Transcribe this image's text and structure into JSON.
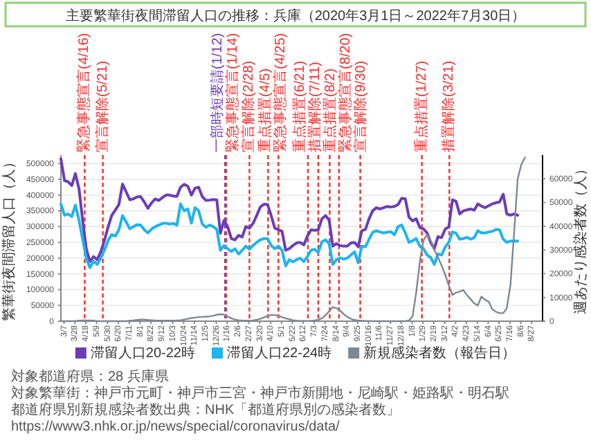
{
  "chart_data": {
    "type": "line",
    "title": "主要繁華街夜間滞留人口の推移：兵庫（2020年3月1日～2022年7月30日）",
    "ylabel": "繁華街夜間滞留人口（人）",
    "y2label": "週あたり感染者数（人）",
    "x": [
      "2020-03-01",
      "2020-03-08",
      "2020-03-15",
      "2020-03-22",
      "2020-03-29",
      "2020-04-05",
      "2020-04-12",
      "2020-04-19",
      "2020-04-26",
      "2020-05-03",
      "2020-05-10",
      "2020-05-17",
      "2020-05-24",
      "2020-05-31",
      "2020-06-07",
      "2020-06-14",
      "2020-06-21",
      "2020-06-28",
      "2020-07-05",
      "2020-07-12",
      "2020-07-19",
      "2020-07-26",
      "2020-08-02",
      "2020-08-09",
      "2020-08-16",
      "2020-08-23",
      "2020-08-30",
      "2020-09-06",
      "2020-09-13",
      "2020-09-20",
      "2020-09-27",
      "2020-10-04",
      "2020-10-11",
      "2020-10-18",
      "2020-10-25",
      "2020-11-01",
      "2020-11-08",
      "2020-11-15",
      "2020-11-22",
      "2020-11-29",
      "2020-12-06",
      "2020-12-13",
      "2020-12-20",
      "2020-12-27",
      "2021-01-03",
      "2021-01-10",
      "2021-01-17",
      "2021-01-24",
      "2021-01-31",
      "2021-02-07",
      "2021-02-14",
      "2021-02-21",
      "2021-02-28",
      "2021-03-07",
      "2021-03-14",
      "2021-03-21",
      "2021-03-28",
      "2021-04-04",
      "2021-04-11",
      "2021-04-18",
      "2021-04-25",
      "2021-05-02",
      "2021-05-09",
      "2021-05-16",
      "2021-05-23",
      "2021-05-30",
      "2021-06-06",
      "2021-06-13",
      "2021-06-20",
      "2021-06-27",
      "2021-07-04",
      "2021-07-11",
      "2021-07-18",
      "2021-07-25",
      "2021-08-01",
      "2021-08-08",
      "2021-08-15",
      "2021-08-22",
      "2021-08-29",
      "2021-09-05",
      "2021-09-12",
      "2021-09-19",
      "2021-09-26",
      "2021-10-03",
      "2021-10-10",
      "2021-10-17",
      "2021-10-24",
      "2021-10-31",
      "2021-11-07",
      "2021-11-14",
      "2021-11-21",
      "2021-11-28",
      "2021-12-05",
      "2021-12-12",
      "2021-12-19",
      "2021-12-26",
      "2022-01-02",
      "2022-01-09",
      "2022-01-16",
      "2022-01-23",
      "2022-01-30",
      "2022-02-06",
      "2022-02-13",
      "2022-02-20",
      "2022-02-27",
      "2022-03-06",
      "2022-03-13",
      "2022-03-20",
      "2022-03-27",
      "2022-04-03",
      "2022-04-10",
      "2022-04-17",
      "2022-04-24",
      "2022-05-01",
      "2022-05-08",
      "2022-05-15",
      "2022-05-22",
      "2022-05-29",
      "2022-06-05",
      "2022-06-12",
      "2022-06-19",
      "2022-06-26",
      "2022-07-03",
      "2022-07-10",
      "2022-07-17",
      "2022-07-24",
      "2022-07-31",
      "2022-08-07",
      "2022-08-14"
    ],
    "series": [
      {
        "name": "滞留人口20-22時",
        "color": "#6a3db8",
        "values": [
          515000,
          446000,
          442000,
          430000,
          468000,
          420000,
          320000,
          230000,
          189000,
          205000,
          195000,
          220000,
          256000,
          298000,
          335000,
          352000,
          370000,
          435000,
          410000,
          385000,
          388000,
          394000,
          395000,
          378000,
          358000,
          375000,
          388000,
          383000,
          392000,
          400000,
          400000,
          397000,
          396000,
          425000,
          434000,
          428000,
          400000,
          422000,
          425000,
          395000,
          383000,
          384000,
          386000,
          385000,
          279000,
          320000,
          300000,
          262000,
          258000,
          272000,
          267000,
          300000,
          295000,
          310000,
          335000,
          362000,
          371000,
          370000,
          335000,
          295000,
          290000,
          285000,
          225000,
          230000,
          240000,
          248000,
          250000,
          242000,
          270000,
          290000,
          288000,
          290000,
          325000,
          335000,
          320000,
          238000,
          246000,
          240000,
          238000,
          238000,
          248000,
          250000,
          236000,
          287000,
          291000,
          325000,
          350000,
          360000,
          356000,
          360000,
          364000,
          362000,
          364000,
          370000,
          390000,
          388000,
          330000,
          318000,
          325000,
          297000,
          293000,
          280000,
          250000,
          230000,
          268000,
          265000,
          292000,
          299000,
          385000,
          380000,
          340000,
          350000,
          353000,
          356000,
          352000,
          372000,
          365000,
          360000,
          366000,
          372000,
          376000,
          378000,
          403000,
          340000,
          336000,
          340000,
          336000,
          null,
          null
        ]
      },
      {
        "name": "滞留人口22-24時",
        "color": "#1eb4ee",
        "values": [
          372000,
          336000,
          340000,
          332000,
          368000,
          320000,
          260000,
          200000,
          170000,
          190000,
          180000,
          200000,
          225000,
          255000,
          275000,
          270000,
          290000,
          335000,
          315000,
          293000,
          300000,
          306000,
          305000,
          290000,
          280000,
          292000,
          300000,
          305000,
          310000,
          311000,
          308000,
          310000,
          305000,
          372000,
          350000,
          356000,
          311000,
          360000,
          350000,
          308000,
          298000,
          305000,
          300000,
          291000,
          225000,
          240000,
          230000,
          221000,
          230000,
          213000,
          225000,
          238000,
          228000,
          240000,
          250000,
          258000,
          262000,
          262000,
          240000,
          230000,
          238000,
          225000,
          175000,
          195000,
          188000,
          195000,
          200000,
          189000,
          205000,
          225000,
          228000,
          218000,
          252000,
          258000,
          246000,
          180000,
          195000,
          201000,
          197000,
          200000,
          210000,
          220000,
          185000,
          238000,
          236000,
          260000,
          282000,
          287000,
          283000,
          280000,
          282000,
          284000,
          274000,
          300000,
          305000,
          280000,
          250000,
          255000,
          262000,
          238000,
          230000,
          210000,
          202000,
          180000,
          213000,
          210000,
          235000,
          250000,
          283000,
          279000,
          260000,
          262000,
          266000,
          260000,
          265000,
          287000,
          280000,
          280000,
          283000,
          285000,
          291000,
          290000,
          260000,
          250000,
          254000,
          254000,
          254000,
          null,
          null
        ]
      },
      {
        "name": "新規感染者数（報告日）",
        "color": "#7f8890",
        "axis": "y2",
        "values": [
          0,
          0,
          0,
          0,
          100,
          200,
          300,
          300,
          300,
          200,
          100,
          0,
          0,
          0,
          0,
          0,
          0,
          0,
          0,
          200,
          300,
          500,
          700,
          700,
          500,
          400,
          300,
          250,
          200,
          200,
          200,
          250,
          300,
          400,
          700,
          1000,
          1300,
          1500,
          1700,
          1800,
          1900,
          2000,
          2300,
          2700,
          2900,
          2800,
          2000,
          1200,
          700,
          400,
          250,
          200,
          200,
          300,
          600,
          1000,
          1600,
          2200,
          2600,
          2600,
          2200,
          1700,
          1200,
          800,
          400,
          200,
          100,
          100,
          100,
          150,
          300,
          600,
          1200,
          2500,
          4200,
          5900,
          5500,
          4500,
          3000,
          1800,
          1000,
          500,
          300,
          200,
          100,
          100,
          0,
          0,
          0,
          0,
          0,
          0,
          0,
          0,
          0,
          0,
          300,
          2000,
          12000,
          25000,
          34000,
          36500,
          34000,
          30000,
          27000,
          23500,
          19600,
          15000,
          11000,
          12000,
          12500,
          13100,
          11000,
          9300,
          7500,
          6600,
          10400,
          9000,
          8200,
          5000,
          4000,
          3400,
          3400,
          5500,
          15300,
          37000,
          60000,
          66000,
          69000
        ]
      }
    ],
    "xlim": [
      "2020-03-01",
      "2022-09-17"
    ],
    "xticks": [
      {
        "value": "2020-03-07",
        "label": "3/7"
      },
      {
        "value": "2020-03-28",
        "label": "3/28"
      },
      {
        "value": "2020-04-18",
        "label": "4/18"
      },
      {
        "value": "2020-05-09",
        "label": "5/9"
      },
      {
        "value": "2020-05-30",
        "label": "5/30"
      },
      {
        "value": "2020-06-20",
        "label": "6/20"
      },
      {
        "value": "2020-07-11",
        "label": "7/11"
      },
      {
        "value": "2020-08-01",
        "label": "8/1"
      },
      {
        "value": "2020-08-22",
        "label": "8/22"
      },
      {
        "value": "2020-09-12",
        "label": "9/12"
      },
      {
        "value": "2020-10-03",
        "label": "10/3"
      },
      {
        "value": "2020-10-24",
        "label": "10/24"
      },
      {
        "value": "2020-11-14",
        "label": "11/14"
      },
      {
        "value": "2020-12-05",
        "label": "12/5"
      },
      {
        "value": "2020-12-26",
        "label": "12/26"
      },
      {
        "value": "2021-01-16",
        "label": "1/16"
      },
      {
        "value": "2021-02-06",
        "label": "2/6"
      },
      {
        "value": "2021-02-27",
        "label": "2/27"
      },
      {
        "value": "2021-03-20",
        "label": "3/20"
      },
      {
        "value": "2021-04-10",
        "label": "4/10"
      },
      {
        "value": "2021-05-01",
        "label": "5/1"
      },
      {
        "value": "2021-05-22",
        "label": "5/22"
      },
      {
        "value": "2021-06-12",
        "label": "6/12"
      },
      {
        "value": "2021-07-03",
        "label": "7/3"
      },
      {
        "value": "2021-07-24",
        "label": "7/24"
      },
      {
        "value": "2021-08-14",
        "label": "8/14"
      },
      {
        "value": "2021-09-04",
        "label": "9/4"
      },
      {
        "value": "2021-09-25",
        "label": "9/25"
      },
      {
        "value": "2021-10-16",
        "label": "10/16"
      },
      {
        "value": "2021-11-06",
        "label": "11/6"
      },
      {
        "value": "2021-11-27",
        "label": "11/27"
      },
      {
        "value": "2021-12-18",
        "label": "12/18"
      },
      {
        "value": "2022-01-08",
        "label": "1/8"
      },
      {
        "value": "2022-01-29",
        "label": "1/29"
      },
      {
        "value": "2022-02-19",
        "label": "2/19"
      },
      {
        "value": "2022-03-12",
        "label": "3/12"
      },
      {
        "value": "2022-04-02",
        "label": "4/2"
      },
      {
        "value": "2022-04-23",
        "label": "4/23"
      },
      {
        "value": "2022-05-14",
        "label": "5/14"
      },
      {
        "value": "2022-06-04",
        "label": "6/4"
      },
      {
        "value": "2022-06-25",
        "label": "6/25"
      },
      {
        "value": "2022-07-16",
        "label": "7/16"
      },
      {
        "value": "2022-08-06",
        "label": "8/6"
      },
      {
        "value": "2022-08-27",
        "label": "8/27"
      }
    ],
    "ylim": [
      0,
      527000
    ],
    "yticks": [
      0,
      50000,
      100000,
      150000,
      200000,
      250000,
      300000,
      350000,
      400000,
      450000,
      500000
    ],
    "y2lim": [
      0,
      70000
    ],
    "y2ticks": [
      0,
      10000,
      20000,
      30000,
      40000,
      50000,
      60000
    ],
    "grid": "y",
    "legend": "bottom",
    "line_style": "solid",
    "marker": "none",
    "ref_lines": [
      {
        "axis": "x",
        "value": "2020-04-16",
        "label": "緊急事態宣言(4/16)",
        "color": "#ff2a2a",
        "line_style": "dashed"
      },
      {
        "axis": "x",
        "value": "2020-05-21",
        "label": "宣言解除(5/21)",
        "color": "#ff2a2a",
        "line_style": "dashed"
      },
      {
        "axis": "x",
        "value": "2021-01-12",
        "label": "一部時短要請(1/12)",
        "color": "#6a3db8",
        "line_style": "dashed"
      },
      {
        "axis": "x",
        "value": "2021-01-14",
        "label": "緊急事態宣言(1/14)",
        "color": "#ff2a2a",
        "line_style": "dashed"
      },
      {
        "axis": "x",
        "value": "2021-02-28",
        "label": "宣言解除(2/28)",
        "color": "#ff2a2a",
        "line_style": "dashed"
      },
      {
        "axis": "x",
        "value": "2021-04-05",
        "label": "重点措置(4/5)",
        "color": "#ff2a2a",
        "line_style": "dashed"
      },
      {
        "axis": "x",
        "value": "2021-04-25",
        "label": "緊急事態宣言(4/25)",
        "color": "#ff2a2a",
        "line_style": "dashed"
      },
      {
        "axis": "x",
        "value": "2021-06-21",
        "label": "重点措置(6/21)",
        "color": "#ff2a2a",
        "line_style": "dashed"
      },
      {
        "axis": "x",
        "value": "2021-07-11",
        "label": "措置解除(7/11)",
        "color": "#ff2a2a",
        "line_style": "dashed"
      },
      {
        "axis": "x",
        "value": "2021-08-02",
        "label": "重点措置(8/2)",
        "color": "#ff2a2a",
        "line_style": "dashed"
      },
      {
        "axis": "x",
        "value": "2021-08-20",
        "label": "緊急事態宣言(8/20)",
        "color": "#ff2a2a",
        "line_style": "dashed"
      },
      {
        "axis": "x",
        "value": "2021-09-30",
        "label": "宣言解除(9/30)",
        "color": "#ff2a2a",
        "line_style": "dashed"
      },
      {
        "axis": "x",
        "value": "2022-01-27",
        "label": "重点措置(1/27)",
        "color": "#ff2a2a",
        "line_style": "dashed"
      },
      {
        "axis": "x",
        "value": "2022-03-21",
        "label": "措置解除(3/21)",
        "color": "#ff2a2a",
        "line_style": "dashed"
      }
    ],
    "annotations": [
      "対象都道府県：28 兵庫県",
      "対象繁華街：神戸市元町・神戸市三宮・神戸市新開地・尼崎駅・姫路駅・明石駅",
      "都道府県別新規感染者数出典：NHK「都道府県別の感染者数」",
      "https://www3.nhk.or.jp/news/special/coronavirus/data/"
    ]
  }
}
